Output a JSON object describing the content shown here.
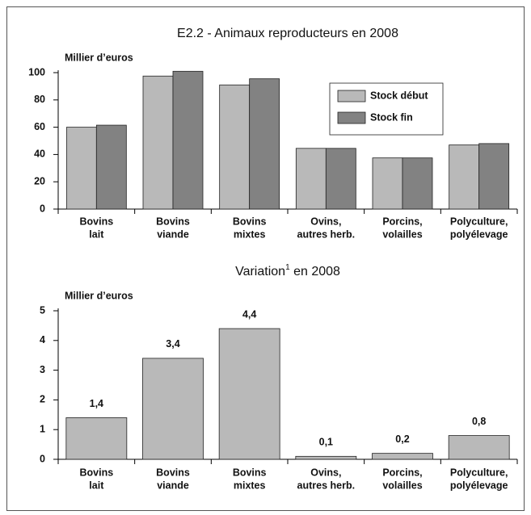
{
  "chart_data": [
    {
      "type": "bar",
      "title": "E2.2 - Animaux reproducteurs en 2008",
      "y_label": "Millier d’euros",
      "categories": [
        [
          "Bovins",
          "lait"
        ],
        [
          "Bovins",
          "viande"
        ],
        [
          "Bovins",
          "mixtes"
        ],
        [
          "Ovins,",
          "autres herb."
        ],
        [
          "Porcins,",
          "volailles"
        ],
        [
          "Polyculture,",
          "polyélevage"
        ]
      ],
      "series": [
        {
          "name": "Stock début",
          "color": "#b9b9b9",
          "values": [
            60,
            97.5,
            91,
            44.5,
            37.5,
            47
          ]
        },
        {
          "name": "Stock fin",
          "color": "#828282",
          "values": [
            61.5,
            101,
            95.5,
            44.5,
            37.5,
            48
          ]
        }
      ],
      "ylim": [
        0,
        100
      ],
      "yticks": [
        0,
        20,
        40,
        60,
        80,
        100
      ],
      "legend": "upper right"
    },
    {
      "type": "bar",
      "title": "Variation",
      "title_footnote": "1",
      "title_rest": " en 2008",
      "y_label": "Millier d’euros",
      "categories": [
        [
          "Bovins",
          "lait"
        ],
        [
          "Bovins",
          "viande"
        ],
        [
          "Bovins",
          "mixtes"
        ],
        [
          "Ovins,",
          "autres herb."
        ],
        [
          "Porcins,",
          "volailles"
        ],
        [
          "Polyculture,",
          "polyélevage"
        ]
      ],
      "series": [
        {
          "color": "#b9b9b9",
          "values": [
            1.4,
            3.4,
            4.4,
            0.1,
            0.2,
            0.8
          ],
          "value_labels": [
            "1,4",
            "3,4",
            "4,4",
            "0,1",
            "0,2",
            "0,8"
          ]
        }
      ],
      "ylim": [
        0,
        5
      ],
      "yticks": [
        0,
        1,
        2,
        3,
        4,
        5
      ]
    }
  ]
}
